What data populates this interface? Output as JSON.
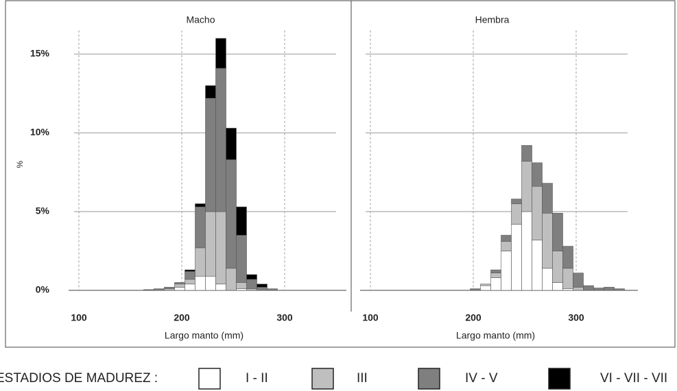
{
  "chart_data": {
    "type": "stacked_histogram",
    "ylabel": "%",
    "ylim": [
      0,
      16.5
    ],
    "yticks": [
      {
        "value": 0,
        "label": "0%"
      },
      {
        "value": 5,
        "label": "5%"
      },
      {
        "value": 10,
        "label": "10%"
      },
      {
        "value": 15,
        "label": "15%"
      }
    ],
    "xlim": [
      90,
      360
    ],
    "xticks": [
      100,
      200,
      300
    ],
    "grid": true,
    "legend": {
      "title": "ESTADIOS DE MADUREZ :",
      "items": [
        {
          "name": "I - II",
          "color": "#ffffff"
        },
        {
          "name": "III",
          "color": "#bfbfbf"
        },
        {
          "name": "IV - V",
          "color": "#7f7f7f"
        },
        {
          "name": "VI - VII - VII",
          "color": "#000000"
        }
      ]
    },
    "panels": [
      {
        "title": "Macho",
        "xlabel": "Largo manto (mm)",
        "bins": [
          163,
          173,
          183,
          193,
          203,
          213,
          223,
          233,
          243,
          253,
          263,
          273,
          283,
          293
        ],
        "series": [
          {
            "values": [
              0,
              0,
              0,
              0.2,
              0.4,
              0.9,
              0.9,
              0.4,
              0,
              0.1,
              0,
              0,
              0
            ]
          },
          {
            "values": [
              0,
              0,
              0.1,
              0.2,
              0.3,
              1.8,
              4.1,
              4.6,
              1.4,
              0.4,
              0.1,
              0,
              0
            ]
          },
          {
            "values": [
              0.05,
              0.1,
              0.1,
              0.1,
              0.5,
              2.6,
              7.2,
              9.1,
              6.9,
              3.0,
              0.6,
              0.2,
              0.1
            ]
          },
          {
            "values": [
              0,
              0,
              0,
              0,
              0.1,
              0.2,
              0.8,
              1.9,
              2.0,
              1.8,
              0.3,
              0.2,
              0
            ]
          }
        ]
      },
      {
        "title": "Hembra",
        "xlabel": "Largo manto (mm)",
        "bins": [
          197,
          207,
          217,
          227,
          237,
          247,
          257,
          267,
          277,
          287,
          297,
          307,
          317,
          327,
          337,
          347
        ],
        "series": [
          {
            "values": [
              0,
              0.3,
              0.8,
              2.5,
              4.2,
              5.0,
              3.2,
              1.4,
              0.5,
              0.1,
              0,
              0,
              0,
              0,
              0
            ]
          },
          {
            "values": [
              0,
              0.1,
              0.3,
              0.6,
              1.3,
              3.2,
              3.4,
              3.5,
              2.0,
              1.3,
              0.2,
              0,
              0,
              0,
              0
            ]
          },
          {
            "values": [
              0.1,
              0,
              0.2,
              0.4,
              0.3,
              1.0,
              1.5,
              1.9,
              2.4,
              1.4,
              0.9,
              0.3,
              0.15,
              0.2,
              0.1
            ]
          },
          {
            "values": [
              0,
              0,
              0,
              0,
              0,
              0,
              0,
              0,
              0,
              0,
              0,
              0,
              0,
              0,
              0
            ]
          }
        ]
      }
    ]
  }
}
